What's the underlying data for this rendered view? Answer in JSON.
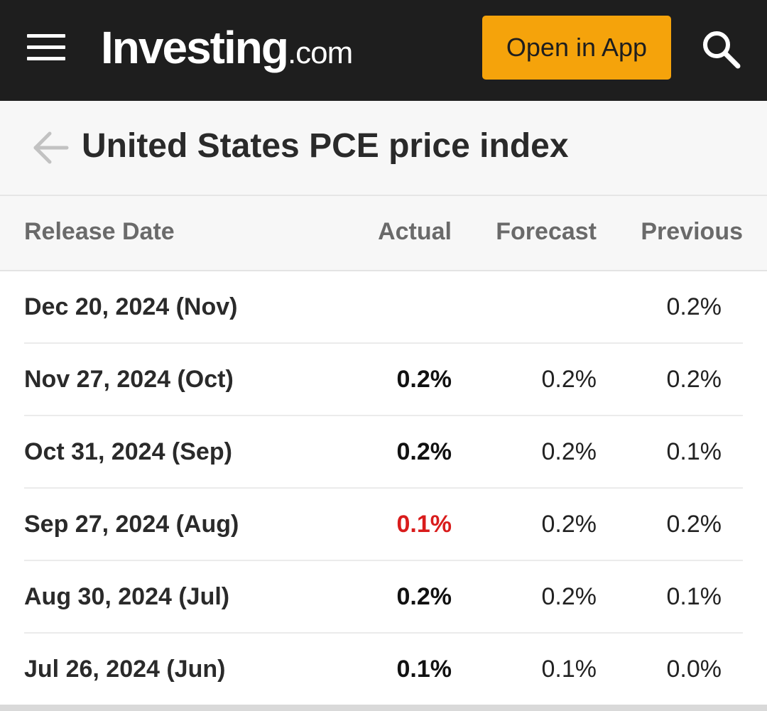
{
  "header": {
    "logo_main": "Investing",
    "logo_suffix": ".com",
    "open_app_label": "Open in App",
    "icons": {
      "menu": "hamburger-menu-icon",
      "search": "search-icon"
    },
    "colors": {
      "bar": "#1e1e1e",
      "accent": "#f5a30b"
    }
  },
  "title_bar": {
    "back_icon": "back-arrow-icon",
    "title": "United States PCE price index"
  },
  "table": {
    "columns": {
      "date": "Release Date",
      "actual": "Actual",
      "forecast": "Forecast",
      "previous": "Previous"
    },
    "rows": [
      {
        "date": "Dec 20, 2024 (Nov)",
        "actual": "",
        "forecast": "",
        "previous": "0.2%",
        "actual_status": "neutral"
      },
      {
        "date": "Nov 27, 2024 (Oct)",
        "actual": "0.2%",
        "forecast": "0.2%",
        "previous": "0.2%",
        "actual_status": "neutral"
      },
      {
        "date": "Oct 31, 2024 (Sep)",
        "actual": "0.2%",
        "forecast": "0.2%",
        "previous": "0.1%",
        "actual_status": "neutral"
      },
      {
        "date": "Sep 27, 2024 (Aug)",
        "actual": "0.1%",
        "forecast": "0.2%",
        "previous": "0.2%",
        "actual_status": "below-forecast"
      },
      {
        "date": "Aug 30, 2024 (Jul)",
        "actual": "0.2%",
        "forecast": "0.2%",
        "previous": "0.1%",
        "actual_status": "neutral"
      },
      {
        "date": "Jul 26, 2024 (Jun)",
        "actual": "0.1%",
        "forecast": "0.1%",
        "previous": "0.0%",
        "actual_status": "neutral"
      }
    ],
    "status_colors": {
      "neutral": "#111111",
      "below-forecast": "#d91c1c"
    }
  }
}
